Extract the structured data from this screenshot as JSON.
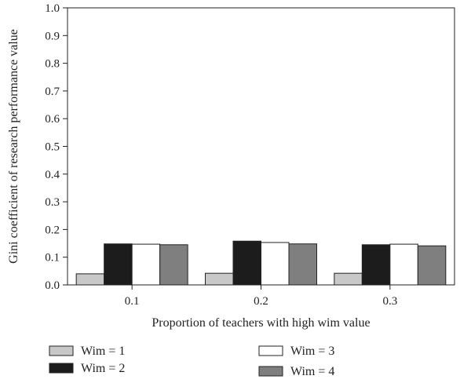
{
  "chart_data": {
    "type": "bar",
    "categories": [
      "0.1",
      "0.2",
      "0.3"
    ],
    "series": [
      {
        "name": "Wim = 1",
        "values": [
          0.04,
          0.042,
          0.042
        ],
        "color": "#c8c8c8"
      },
      {
        "name": "Wim = 2",
        "values": [
          0.148,
          0.158,
          0.145
        ],
        "color": "#1c1c1c"
      },
      {
        "name": "Wim = 3",
        "values": [
          0.147,
          0.153,
          0.147
        ],
        "color": "#ffffff"
      },
      {
        "name": "Wim = 4",
        "values": [
          0.145,
          0.148,
          0.141
        ],
        "color": "#7f7f7f"
      }
    ],
    "title": "",
    "xlabel": "Proportion of teachers with high wim value",
    "ylabel": "Gini coefficient of research performance value",
    "ylim": [
      0,
      1.0
    ],
    "yticks": [
      "0.0",
      "0.1",
      "0.2",
      "0.3",
      "0.4",
      "0.5",
      "0.6",
      "0.7",
      "0.8",
      "0.9",
      "1.0"
    ],
    "grid": false,
    "legend_position": "bottom"
  }
}
